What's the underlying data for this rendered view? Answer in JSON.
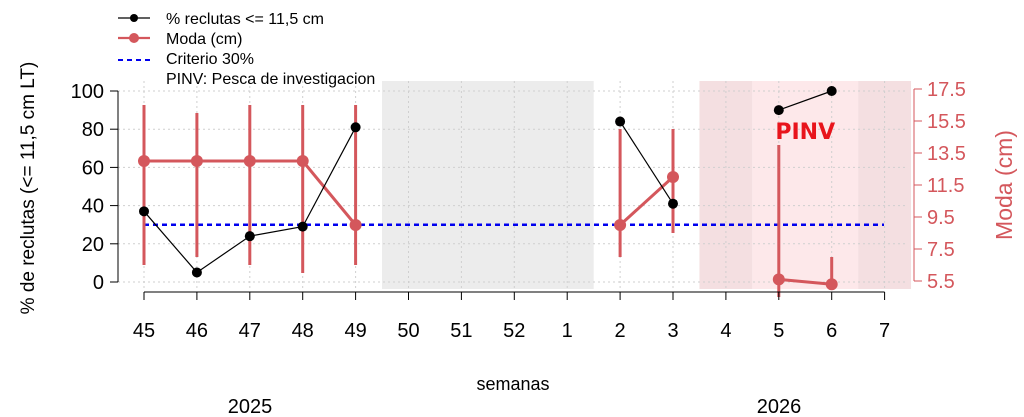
{
  "chart_data": {
    "type": "line",
    "xlabel": "semanas",
    "ylabel_left": "% de reclutas (<= 11,5 cm LT)",
    "ylabel_right": "Moda (cm)",
    "x_ticks": [
      "45",
      "46",
      "47",
      "48",
      "49",
      "50",
      "51",
      "52",
      "1",
      "2",
      "3",
      "4",
      "5",
      "6",
      "7"
    ],
    "year_labels": [
      {
        "label": "2025",
        "at_week": "47"
      },
      {
        "label": "2026",
        "at_week": "6"
      }
    ],
    "y_left_ticks": [
      0,
      20,
      40,
      60,
      80,
      100
    ],
    "y_left_lim": [
      0,
      100
    ],
    "y_right_ticks": [
      5.5,
      7.5,
      9.5,
      11.5,
      13.5,
      15.5,
      17.5
    ],
    "y_right_tick_labels": [
      "5.5",
      "7.5",
      "9.5",
      "11.5",
      "13.5",
      "15.5",
      "17.5"
    ],
    "y_right_lim": [
      5.0,
      18.0
    ],
    "grid": true,
    "legend": {
      "placement": "top-left",
      "entries": [
        {
          "label": "% reclutas <= 11,5 cm",
          "style": "black-line-dot"
        },
        {
          "label": "Moda (cm)",
          "style": "red-line-dot"
        },
        {
          "label": "Criterio 30%",
          "style": "blue-dash"
        },
        {
          "label": "PINV: Pesca de investigacion",
          "style": "none"
        }
      ]
    },
    "shaded_regions": [
      {
        "from_week": "50",
        "to_week": "1",
        "kind": "no-data",
        "color": "#ececec"
      },
      {
        "from_week": "4",
        "to_week": "4",
        "kind": "closure",
        "color": "#f4dfe1"
      },
      {
        "from_week": "5",
        "to_week": "6",
        "kind": "pinv",
        "color": "#fde8ea"
      },
      {
        "from_week": "7",
        "to_week": "7",
        "kind": "closure",
        "color": "#f4dfe1"
      }
    ],
    "annotation": {
      "text": "PINV",
      "at_week": "5.5",
      "y_left": 79,
      "color": "#e8141c"
    },
    "criterion": {
      "name": "Criterio 30%",
      "value": 30,
      "color": "#0000ee"
    },
    "series": [
      {
        "name": "% reclutas <= 11,5 cm",
        "axis": "left",
        "color": "#000000",
        "segments": [
          [
            {
              "x": "45",
              "y": 37
            },
            {
              "x": "46",
              "y": 5
            },
            {
              "x": "47",
              "y": 24
            },
            {
              "x": "48",
              "y": 29
            },
            {
              "x": "49",
              "y": 81
            }
          ],
          [
            {
              "x": "2",
              "y": 84
            },
            {
              "x": "3",
              "y": 41
            }
          ],
          [
            {
              "x": "5",
              "y": 90
            },
            {
              "x": "6",
              "y": 100
            }
          ]
        ]
      },
      {
        "name": "Moda (cm)",
        "axis": "right",
        "color": "#d4575c",
        "segments": [
          [
            {
              "x": "45",
              "y": 13.0,
              "low": 6.5,
              "high": 16.5
            },
            {
              "x": "46",
              "y": 13.0,
              "low": 7.0,
              "high": 16.0
            },
            {
              "x": "47",
              "y": 13.0,
              "low": 6.5,
              "high": 16.5
            },
            {
              "x": "48",
              "y": 13.0,
              "low": 6.0,
              "high": 16.5
            },
            {
              "x": "49",
              "y": 9.0,
              "low": 6.5,
              "high": 16.5
            }
          ],
          [
            {
              "x": "2",
              "y": 9.0,
              "low": 7.0,
              "high": 15.0
            },
            {
              "x": "3",
              "y": 12.0,
              "low": 8.5,
              "high": 15.0
            }
          ],
          [
            {
              "x": "5",
              "y": 5.6,
              "low": 4.5,
              "high": 14.0
            },
            {
              "x": "6",
              "y": 5.3,
              "low": 5.0,
              "high": 7.0
            }
          ]
        ]
      }
    ]
  }
}
